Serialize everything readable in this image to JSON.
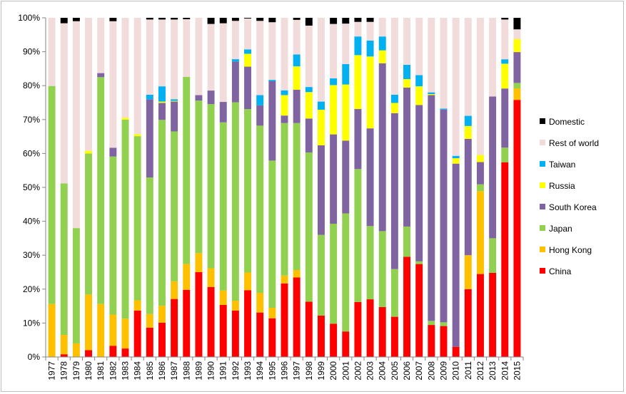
{
  "chart_data": {
    "type": "bar",
    "stacked": true,
    "normalized": true,
    "categories": [
      "1977",
      "1978",
      "1979",
      "1980",
      "1981",
      "1982",
      "1983",
      "1984",
      "1985",
      "1986",
      "1987",
      "1988",
      "1989",
      "1990",
      "1991",
      "1992",
      "1993",
      "1994",
      "1995",
      "1996",
      "1997",
      "1998",
      "1999",
      "2000",
      "2001",
      "2002",
      "2003",
      "2004",
      "2005",
      "2006",
      "2007",
      "2008",
      "2009",
      "2010",
      "2011",
      "2012",
      "2013",
      "2014",
      "2015"
    ],
    "series": [
      {
        "name": "China",
        "color": "#ff0000",
        "values": [
          0,
          0.8,
          0,
          2,
          0,
          3.3,
          2.5,
          13.7,
          8.7,
          10.1,
          17.1,
          19.8,
          25,
          20.6,
          15.3,
          13.7,
          19.7,
          13.1,
          11.4,
          21.6,
          23.4,
          16.3,
          12.2,
          9.8,
          7.5,
          16.2,
          17,
          14.7,
          11.8,
          29.4,
          27.4,
          9.4,
          9.1,
          3,
          20,
          24.6,
          24.8,
          57.3,
          75.8
        ]
      },
      {
        "name": "Hong Kong",
        "color": "#ffc000",
        "values": [
          15.6,
          5.7,
          4,
          16.4,
          15.6,
          9.2,
          8.8,
          3,
          4,
          5,
          5.2,
          7.6,
          5.6,
          5.5,
          4.2,
          2.9,
          5.2,
          5.8,
          3.1,
          2.3,
          2.2,
          0,
          0,
          0,
          0,
          0,
          0,
          0,
          0,
          0,
          0,
          0,
          0,
          0,
          10,
          24.6,
          0,
          0,
          3.4
        ]
      },
      {
        "name": "Japan",
        "color": "#92d050",
        "values": [
          64.3,
          44.7,
          34,
          41.6,
          66.9,
          46.6,
          58.7,
          48.4,
          40.5,
          54.8,
          44.2,
          55.2,
          45,
          48.3,
          49.4,
          58.5,
          48.2,
          49.3,
          43.4,
          44.8,
          43.3,
          44,
          23.8,
          29.4,
          34.7,
          39.2,
          21.6,
          22.4,
          14,
          8.9,
          0.8,
          1.2,
          1.1,
          0,
          0,
          2,
          10.2,
          4.3,
          1.6
        ]
      },
      {
        "name": "South Korea",
        "color": "#8064a2",
        "values": [
          0,
          0,
          0,
          0,
          1.2,
          2.6,
          0,
          0,
          23.1,
          5,
          8.8,
          0,
          1.6,
          4,
          6,
          12,
          12.5,
          6,
          23.4,
          2.2,
          9.8,
          10,
          26.4,
          26.3,
          21.4,
          17.7,
          28.8,
          49.5,
          45.8,
          40.8,
          46.1,
          66.3,
          62.6,
          54,
          34.3,
          6.6,
          41.8,
          17.4,
          9.1
        ]
      },
      {
        "name": "Russia",
        "color": "#ffff00",
        "values": [
          0,
          0,
          0,
          0.8,
          0,
          0,
          0.5,
          0.6,
          0,
          0.4,
          0.2,
          0,
          0,
          0,
          0,
          0,
          3.8,
          0,
          0,
          6,
          6.9,
          7.8,
          10.5,
          14.5,
          16.5,
          15.9,
          21.2,
          3.8,
          3,
          2.5,
          5.5,
          0.3,
          0,
          1.6,
          3.8,
          2.1,
          0,
          7.3,
          3.8
        ]
      },
      {
        "name": "Taiwan",
        "color": "#00b0f0",
        "values": [
          0,
          0,
          0,
          0,
          0,
          0,
          0,
          0,
          1.4,
          4.5,
          0.5,
          0,
          0,
          0,
          0,
          0.7,
          1.3,
          3,
          0.4,
          1.4,
          3.5,
          1.5,
          2.4,
          2,
          6,
          5.5,
          4.7,
          4.1,
          2.4,
          4.2,
          3.3,
          0.5,
          0.3,
          0.7,
          3,
          0,
          0,
          1.3,
          0
        ]
      },
      {
        "name": "Rest of world",
        "color": "#f2dcdb",
        "values": [
          20.1,
          47.2,
          61,
          39.2,
          16.3,
          37.3,
          29.5,
          34.3,
          22.3,
          19.7,
          23.5,
          17,
          22.8,
          19.6,
          23.1,
          11.3,
          9.1,
          21.9,
          17,
          21.3,
          10.2,
          18.1,
          24.7,
          16,
          11.9,
          4.3,
          5.5,
          5.5,
          22.6,
          13.8,
          16.9,
          21.9,
          26.7,
          40.7,
          28.9,
          40.7,
          23.2,
          11.7,
          2.9
        ]
      },
      {
        "name": "Domestic",
        "color": "#000000",
        "values": [
          0,
          1.6,
          1,
          0,
          0,
          1,
          0,
          0,
          0.5,
          0.5,
          0.5,
          0.4,
          0,
          1.8,
          1.6,
          0.9,
          0.2,
          0.9,
          1.3,
          0,
          0.6,
          2.3,
          0,
          1.8,
          1.7,
          1.2,
          1.2,
          0,
          0,
          0,
          0,
          0,
          0,
          0,
          0,
          0,
          0,
          0.5,
          3.4
        ]
      }
    ],
    "title": "",
    "xlabel": "",
    "ylabel": "",
    "ylim": [
      0,
      100
    ],
    "yticks": [
      "0%",
      "10%",
      "20%",
      "30%",
      "40%",
      "50%",
      "60%",
      "70%",
      "80%",
      "90%",
      "100%"
    ],
    "grid": false,
    "legend_position": "right",
    "legend_order": [
      "Domestic",
      "Rest of world",
      "Taiwan",
      "Russia",
      "South Korea",
      "Japan",
      "Hong Kong",
      "China"
    ]
  }
}
